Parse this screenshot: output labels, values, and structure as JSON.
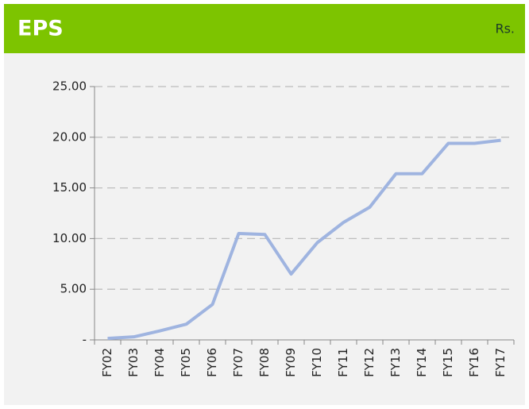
{
  "chart_data": {
    "type": "line",
    "title": "EPS",
    "unit": "Rs.",
    "categories": [
      "FY02",
      "FY03",
      "FY04",
      "FY05",
      "FY06",
      "FY07",
      "FY08",
      "FY09",
      "FY10",
      "FY11",
      "FY12",
      "FY13",
      "FY14",
      "FY15",
      "FY16",
      "FY17"
    ],
    "series": [
      {
        "name": "EPS",
        "color": "#9fb4e0",
        "values": [
          0.15,
          0.3,
          0.9,
          1.55,
          3.5,
          10.5,
          10.4,
          6.5,
          9.6,
          11.6,
          13.1,
          16.4,
          16.4,
          19.4,
          19.4,
          19.7
        ]
      }
    ],
    "ylim": [
      0,
      25
    ],
    "yticks": [
      {
        "value": 0,
        "label": "-"
      },
      {
        "value": 5,
        "label": "5.00"
      },
      {
        "value": 10,
        "label": "10.00"
      },
      {
        "value": 15,
        "label": "15.00"
      },
      {
        "value": 20,
        "label": "20.00"
      },
      {
        "value": 25,
        "label": "25.00"
      }
    ],
    "grid": true
  }
}
